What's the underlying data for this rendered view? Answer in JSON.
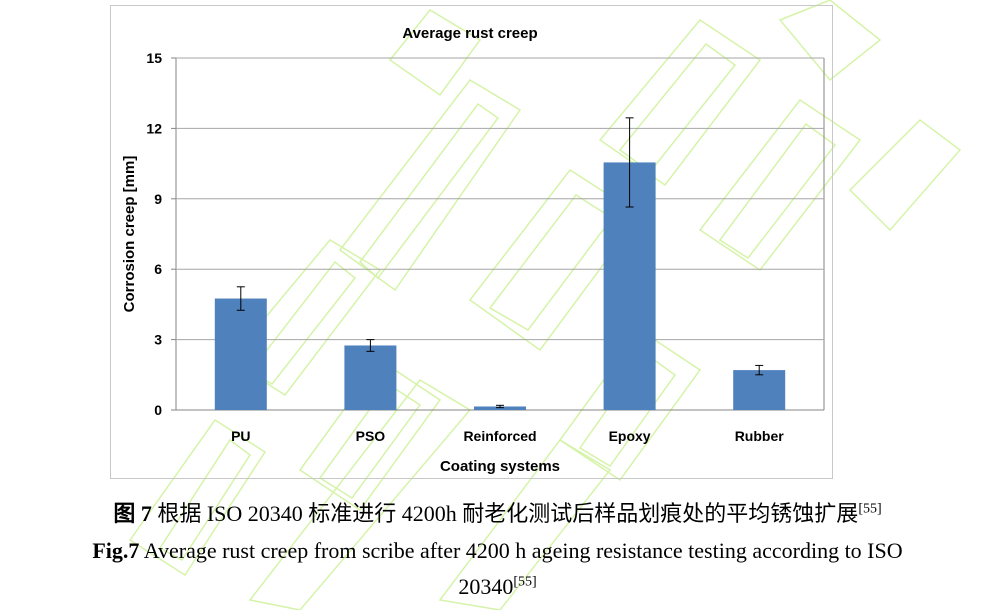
{
  "chart_data": {
    "type": "bar",
    "title": "Average rust creep",
    "xlabel": "Coating systems",
    "ylabel": "Corrosion creep [mm]",
    "categories": [
      "PU",
      "PSO",
      "Reinforced",
      "Epoxy",
      "Rubber"
    ],
    "values": [
      4.75,
      2.75,
      0.15,
      10.55,
      1.7
    ],
    "error_low": [
      4.25,
      2.5,
      0.1,
      8.65,
      1.5
    ],
    "error_high": [
      5.25,
      3.0,
      0.2,
      12.45,
      1.9
    ],
    "ylim": [
      0,
      15
    ],
    "yticks": [
      "0",
      "3",
      "6",
      "9",
      "12",
      "15"
    ],
    "grid": true,
    "legend": "none",
    "bar_color": "#4f81bd"
  },
  "caption": {
    "cn_label": "图 7",
    "cn_text": "根据 ISO 20340 标准进行 4200h 耐老化测试后样品划痕处的平均锈蚀扩展",
    "cn_ref": "[55]",
    "en_label": "Fig.7",
    "en_text_1": "Average rust creep from scribe after 4200 h ageing resistance testing according to ISO",
    "en_text_2": "20340",
    "en_ref": "[55]"
  },
  "watermark_color": "#c8f08c"
}
